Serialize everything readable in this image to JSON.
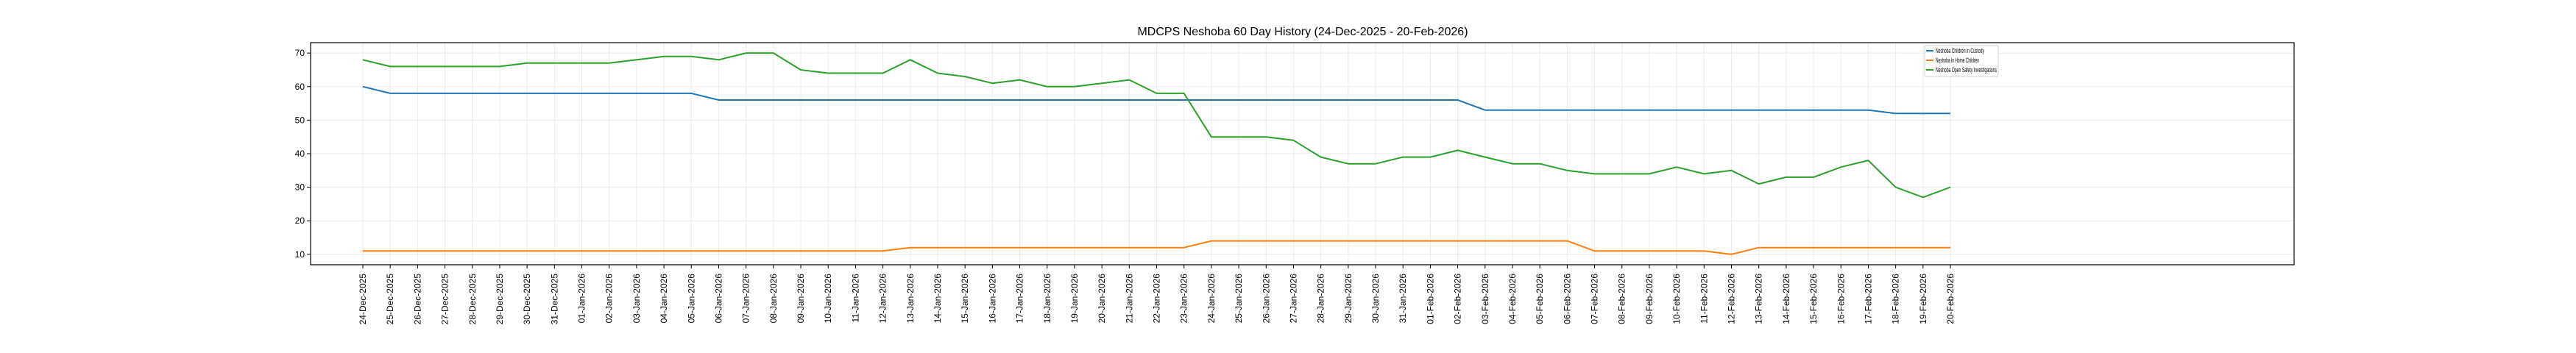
{
  "chart_data": {
    "type": "line",
    "title": "MDCPS Neshoba 60 Day History (24-Dec-2025 - 20-Feb-2026)",
    "xlabel": "",
    "ylabel": "",
    "ylim": [
      6.9,
      73.1
    ],
    "yticks": [
      10,
      20,
      30,
      40,
      50,
      60,
      70
    ],
    "grid": true,
    "legend_position": "top-right",
    "categories": [
      "24-Dec-2025",
      "25-Dec-2025",
      "26-Dec-2025",
      "27-Dec-2025",
      "28-Dec-2025",
      "29-Dec-2025",
      "30-Dec-2025",
      "31-Dec-2025",
      "01-Jan-2026",
      "02-Jan-2026",
      "03-Jan-2026",
      "04-Jan-2026",
      "05-Jan-2026",
      "06-Jan-2026",
      "07-Jan-2026",
      "08-Jan-2026",
      "09-Jan-2026",
      "10-Jan-2026",
      "11-Jan-2026",
      "12-Jan-2026",
      "13-Jan-2026",
      "14-Jan-2026",
      "15-Jan-2026",
      "16-Jan-2026",
      "17-Jan-2026",
      "18-Jan-2026",
      "19-Jan-2026",
      "20-Jan-2026",
      "21-Jan-2026",
      "22-Jan-2026",
      "23-Jan-2026",
      "24-Jan-2026",
      "25-Jan-2026",
      "26-Jan-2026",
      "27-Jan-2026",
      "28-Jan-2026",
      "29-Jan-2026",
      "30-Jan-2026",
      "31-Jan-2026",
      "01-Feb-2026",
      "02-Feb-2026",
      "03-Feb-2026",
      "04-Feb-2026",
      "05-Feb-2026",
      "06-Feb-2026",
      "07-Feb-2026",
      "08-Feb-2026",
      "09-Feb-2026",
      "10-Feb-2026",
      "11-Feb-2026",
      "12-Feb-2026",
      "13-Feb-2026",
      "14-Feb-2026",
      "15-Feb-2026",
      "16-Feb-2026",
      "17-Feb-2026",
      "18-Feb-2026",
      "19-Feb-2026",
      "20-Feb-2026"
    ],
    "series": [
      {
        "name": "Neshoba Children in Custody",
        "color": "#1f77b4",
        "values": [
          60,
          58,
          58,
          58,
          58,
          58,
          58,
          58,
          58,
          58,
          58,
          58,
          58,
          56,
          56,
          56,
          56,
          56,
          56,
          56,
          56,
          56,
          56,
          56,
          56,
          56,
          56,
          56,
          56,
          56,
          56,
          56,
          56,
          56,
          56,
          56,
          56,
          56,
          56,
          56,
          56,
          53,
          53,
          53,
          53,
          53,
          53,
          53,
          53,
          53,
          53,
          53,
          53,
          53,
          53,
          53,
          52,
          52,
          52
        ]
      },
      {
        "name": "Neshoba In Home Children",
        "color": "#ff7f0e",
        "values": [
          11,
          11,
          11,
          11,
          11,
          11,
          11,
          11,
          11,
          11,
          11,
          11,
          11,
          11,
          11,
          11,
          11,
          11,
          11,
          11,
          12,
          12,
          12,
          12,
          12,
          12,
          12,
          12,
          12,
          12,
          12,
          14,
          14,
          14,
          14,
          14,
          14,
          14,
          14,
          14,
          14,
          14,
          14,
          14,
          14,
          11,
          11,
          11,
          11,
          11,
          10,
          12,
          12,
          12,
          12,
          12,
          12,
          12,
          12
        ]
      },
      {
        "name": "Neshoba Open Safety Investigations",
        "color": "#2ca02c",
        "values": [
          68,
          66,
          66,
          66,
          66,
          66,
          67,
          67,
          67,
          67,
          68,
          69,
          69,
          68,
          70,
          70,
          65,
          64,
          64,
          64,
          68,
          64,
          63,
          61,
          62,
          60,
          60,
          61,
          62,
          58,
          58,
          45,
          45,
          45,
          44,
          39,
          37,
          37,
          39,
          39,
          41,
          39,
          37,
          37,
          35,
          34,
          34,
          34,
          36,
          34,
          35,
          31,
          33,
          33,
          36,
          38,
          30,
          27,
          30
        ]
      }
    ]
  }
}
